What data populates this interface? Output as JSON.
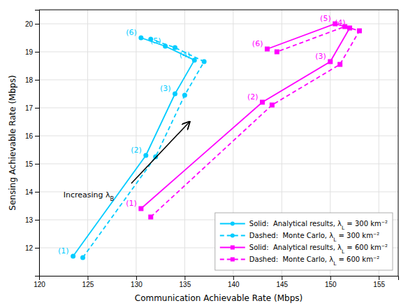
{
  "chart_data": {
    "type": "line",
    "xlabel": "Communication Achievable Rate (Mbps)",
    "ylabel": "Sensing Achievable Rate (Mbps)",
    "xlim": [
      120,
      157
    ],
    "ylim": [
      11,
      20.5
    ],
    "xticks": [
      120,
      125,
      130,
      135,
      140,
      145,
      150,
      155
    ],
    "yticks": [
      12,
      13,
      14,
      15,
      16,
      17,
      18,
      19,
      20
    ],
    "grid": true,
    "legend": "lower right",
    "series": [
      {
        "name": "Solid:  Analytical results, λL = 300 km⁻²",
        "color": "#00CCFF",
        "marker": "circle",
        "line_style": "solid",
        "x": [
          123.5,
          131.0,
          134.0,
          136.0,
          133.0,
          130.5
        ],
        "values": [
          11.7,
          15.3,
          17.5,
          18.7,
          19.2,
          19.5
        ],
        "labels": [
          "(1)",
          "(2)",
          "(3)",
          "(4)",
          "(5)",
          "(6)"
        ]
      },
      {
        "name": "Dashed:  Monte Carlo, λL = 300 km⁻²",
        "color": "#00CCFF",
        "marker": "circle",
        "line_style": "dashed",
        "x": [
          124.5,
          132.0,
          135.0,
          137.0,
          134.0,
          131.5
        ],
        "values": [
          11.65,
          15.25,
          17.45,
          18.65,
          19.15,
          19.45
        ]
      },
      {
        "name": "Solid:  Analytical results, λL = 600 km⁻²",
        "color": "#FF00FF",
        "marker": "square",
        "line_style": "solid",
        "x": [
          130.5,
          143.0,
          150.0,
          152.0,
          150.5,
          143.5
        ],
        "values": [
          13.4,
          17.2,
          18.65,
          19.85,
          20.0,
          19.1
        ],
        "labels": [
          "(1)",
          "(2)",
          "(3)",
          "(4)",
          "(5)",
          "(6)"
        ]
      },
      {
        "name": "Dashed:  Monte Carlo, λL = 600 km⁻²",
        "color": "#FF00FF",
        "marker": "square",
        "line_style": "dashed",
        "x": [
          131.5,
          144.0,
          151.0,
          153.0,
          151.5,
          144.5
        ],
        "values": [
          13.1,
          17.1,
          18.55,
          19.75,
          19.9,
          19.0
        ]
      }
    ],
    "annotations": [
      {
        "text": "Increasing λB",
        "x": 122.5,
        "y": 13.8,
        "arrow": {
          "from": [
            129.5,
            14.3
          ],
          "to": [
            135.5,
            16.5
          ]
        }
      }
    ]
  }
}
